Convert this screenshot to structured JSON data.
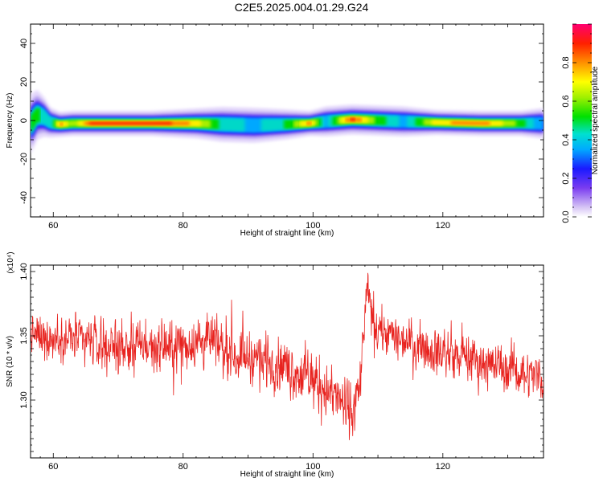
{
  "figure_title": "C2E5.2025.004.01.29.G24",
  "chart_data": [
    {
      "type": "heatmap",
      "xlabel": "Height of straight line (km)",
      "ylabel": "Frequency (Hz)",
      "xlim": [
        56.5,
        135.5
      ],
      "ylim": [
        -50,
        50
      ],
      "x_ticks": [
        "60",
        "80",
        "100",
        "120"
      ],
      "y_ticks": [
        "-40",
        "-20",
        "0",
        "20",
        "40"
      ],
      "colorbar": {
        "label": "Normalized spectral amplitude",
        "range": [
          0,
          1
        ],
        "ticks": [
          "0.0",
          "0.2",
          "0.4",
          "0.6",
          "0.8"
        ]
      },
      "ridge": [
        {
          "x": 56.5,
          "freq": -2,
          "width": 6,
          "amp": 0.5
        },
        {
          "x": 57.5,
          "freq": 3,
          "width": 5,
          "amp": 0.55
        },
        {
          "x": 58.5,
          "freq": 2,
          "width": 4,
          "amp": 0.45
        },
        {
          "x": 59.5,
          "freq": -1,
          "width": 3,
          "amp": 0.4
        },
        {
          "x": 61,
          "freq": -2,
          "width": 2.5,
          "amp": 0.85
        },
        {
          "x": 63,
          "freq": -1.5,
          "width": 2.5,
          "amp": 0.6
        },
        {
          "x": 66,
          "freq": -1.5,
          "width": 2.5,
          "amp": 0.95
        },
        {
          "x": 75,
          "freq": -1.5,
          "width": 2.5,
          "amp": 1.0
        },
        {
          "x": 82,
          "freq": -1.5,
          "width": 3,
          "amp": 0.75
        },
        {
          "x": 86,
          "freq": -2,
          "width": 3.5,
          "amp": 0.45
        },
        {
          "x": 91,
          "freq": -2.5,
          "width": 3.5,
          "amp": 0.35
        },
        {
          "x": 96,
          "freq": -2,
          "width": 3,
          "amp": 0.5
        },
        {
          "x": 99.5,
          "freq": -1.5,
          "width": 2.5,
          "amp": 0.85
        },
        {
          "x": 102,
          "freq": -0.5,
          "width": 3,
          "amp": 0.35
        },
        {
          "x": 106,
          "freq": 0.5,
          "width": 3,
          "amp": 0.95
        },
        {
          "x": 110,
          "freq": 0,
          "width": 3,
          "amp": 0.55
        },
        {
          "x": 114,
          "freq": -0.5,
          "width": 3,
          "amp": 0.35
        },
        {
          "x": 119,
          "freq": -1,
          "width": 2.5,
          "amp": 0.75
        },
        {
          "x": 126,
          "freq": -1.5,
          "width": 2.5,
          "amp": 0.85
        },
        {
          "x": 132,
          "freq": -1.5,
          "width": 2.5,
          "amp": 0.55
        },
        {
          "x": 135,
          "freq": -1.5,
          "width": 3,
          "amp": 0.3
        }
      ]
    },
    {
      "type": "line",
      "xlabel": "Height of straight line (km)",
      "ylabel": "SNR (10 * v/v)",
      "y_scale_label": "(x10⁴)",
      "xlim": [
        56.5,
        135.5
      ],
      "ylim": [
        1.255,
        1.405
      ],
      "x_ticks": [
        "60",
        "80",
        "100",
        "120"
      ],
      "y_ticks": [
        "1.30",
        "1.35",
        "1.40"
      ],
      "color": "#e8231f",
      "trend": [
        {
          "x": 56.5,
          "mean": 1.351,
          "noise": 0.009
        },
        {
          "x": 62,
          "mean": 1.348,
          "noise": 0.01
        },
        {
          "x": 70,
          "mean": 1.343,
          "noise": 0.011
        },
        {
          "x": 78,
          "mean": 1.341,
          "noise": 0.011
        },
        {
          "x": 84,
          "mean": 1.347,
          "noise": 0.011
        },
        {
          "x": 88,
          "mean": 1.336,
          "noise": 0.011
        },
        {
          "x": 94,
          "mean": 1.33,
          "noise": 0.012
        },
        {
          "x": 100,
          "mean": 1.315,
          "noise": 0.012
        },
        {
          "x": 104,
          "mean": 1.3,
          "noise": 0.012
        },
        {
          "x": 106,
          "mean": 1.29,
          "noise": 0.014
        },
        {
          "x": 107.2,
          "mean": 1.31,
          "noise": 0.01
        },
        {
          "x": 108.3,
          "mean": 1.385,
          "noise": 0.01
        },
        {
          "x": 109.5,
          "mean": 1.355,
          "noise": 0.009
        },
        {
          "x": 113,
          "mean": 1.349,
          "noise": 0.009
        },
        {
          "x": 120,
          "mean": 1.337,
          "noise": 0.01
        },
        {
          "x": 128,
          "mean": 1.327,
          "noise": 0.01
        },
        {
          "x": 135.5,
          "mean": 1.318,
          "noise": 0.01
        }
      ]
    }
  ]
}
